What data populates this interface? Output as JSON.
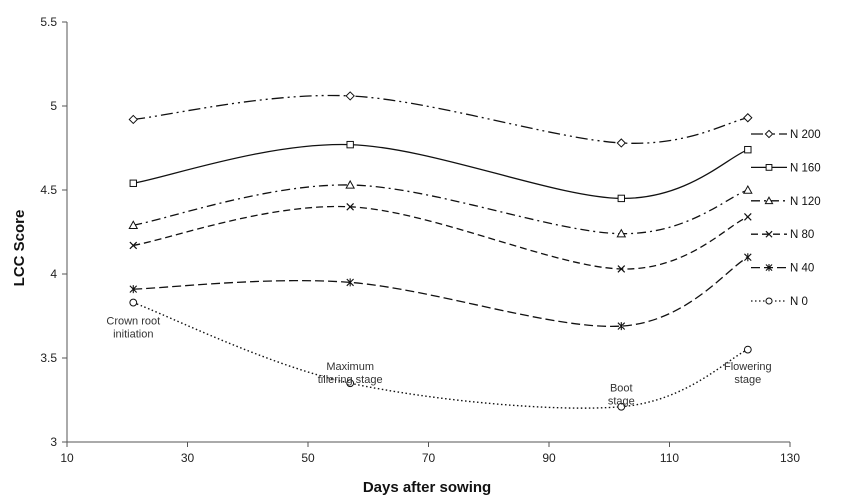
{
  "chart_data": {
    "type": "line",
    "title": "",
    "xlabel": "Days after sowing",
    "ylabel": "LCC Score",
    "xlim": [
      10,
      130
    ],
    "ylim": [
      3,
      5.5
    ],
    "x_ticks": [
      "10",
      "30",
      "50",
      "70",
      "90",
      "110",
      "130"
    ],
    "y_ticks": [
      "3",
      "3.5",
      "4",
      "4.5",
      "5",
      "5.5"
    ],
    "grid": false,
    "legend_position": "right",
    "smooth": true,
    "x": [
      21,
      57,
      102,
      123
    ],
    "series": [
      {
        "name": "N 200",
        "values": [
          4.92,
          5.06,
          4.78,
          4.93
        ],
        "marker": "diamond",
        "dash": "dash-dot-dot"
      },
      {
        "name": "N 160",
        "values": [
          4.54,
          4.77,
          4.45,
          4.74
        ],
        "marker": "square",
        "dash": "solid"
      },
      {
        "name": "N 120",
        "values": [
          4.29,
          4.53,
          4.24,
          4.5
        ],
        "marker": "triangle",
        "dash": "dash-dot"
      },
      {
        "name": "N 80",
        "values": [
          4.17,
          4.4,
          4.03,
          4.34
        ],
        "marker": "x",
        "dash": "dash"
      },
      {
        "name": "N 40",
        "values": [
          3.91,
          3.95,
          3.69,
          4.1
        ],
        "marker": "star",
        "dash": "long-dash"
      },
      {
        "name": "N 0",
        "values": [
          3.83,
          3.35,
          3.21,
          3.55
        ],
        "marker": "circle",
        "dash": "dot"
      }
    ],
    "annotations": [
      {
        "lines": [
          "Crown root",
          "initiation"
        ],
        "x": 21,
        "y": 3.7
      },
      {
        "lines": [
          "Maximum",
          "tillering stage"
        ],
        "x": 57,
        "y": 3.43
      },
      {
        "lines": [
          "Boot",
          "stage"
        ],
        "x": 102,
        "y": 3.3
      },
      {
        "lines": [
          "Flowering",
          "stage"
        ],
        "x": 123,
        "y": 3.43
      }
    ]
  }
}
